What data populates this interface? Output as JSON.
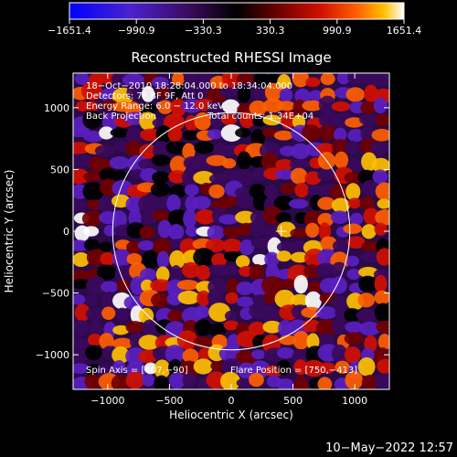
{
  "chart_data": {
    "type": "heatmap",
    "title": "Reconstructed RHESSI Image",
    "xlabel": "Heliocentric X (arcsec)",
    "ylabel": "Heliocentric Y (arcsec)",
    "xlim": [
      -1280,
      1280
    ],
    "ylim": [
      -1280,
      1280
    ],
    "xticks": [
      -1000,
      -500,
      0,
      500,
      1000
    ],
    "yticks": [
      -1000,
      -500,
      0,
      500,
      1000
    ],
    "xtick_labels": [
      "−1000",
      "−500",
      "0",
      "500",
      "1000"
    ],
    "ytick_labels": [
      "−1000",
      "−500",
      "0",
      "500",
      "1000"
    ],
    "colorbar": {
      "min": -1651.4,
      "max": 1651.4,
      "ticks": [
        -1651.4,
        -990.9,
        -330.3,
        330.3,
        990.9,
        1651.4
      ],
      "tick_labels": [
        "−1651.4",
        "−990.9",
        "−330.3",
        "330.3",
        "990.9",
        "1651.4"
      ]
    },
    "solar_disk": {
      "center": [
        0,
        0
      ],
      "radius_arcsec": 960
    },
    "flare_position": [
      750,
      -413
    ],
    "spin_axis": [
      407,
      -90
    ],
    "annotations": {
      "time_range": "18−Oct−2010 18:28:04.000 to 18:34:04.000",
      "detectors": "Detectors: 7F 8F 9F, Att 0",
      "energy_range": "Energy Range: 6.0 − 12.0 keV",
      "method": "Back Projection",
      "total_counts": "Total counts: 1.34E+04",
      "spin_axis_label": "Spin Axis = [407,−90]",
      "flare_position_label": "Flare Position = [750,−413]"
    },
    "grid": false
  },
  "colors": {
    "background": "#000000",
    "axes": "#ffffff",
    "disk_outline": "#ffffff",
    "colormap": [
      "#0000ff",
      "#5a1fc0",
      "#3a0a5c",
      "#000000",
      "#700000",
      "#d01000",
      "#ff6000",
      "#ffc000",
      "#ffffff"
    ]
  },
  "footer": {
    "date": "10−May−2022 12:57"
  }
}
